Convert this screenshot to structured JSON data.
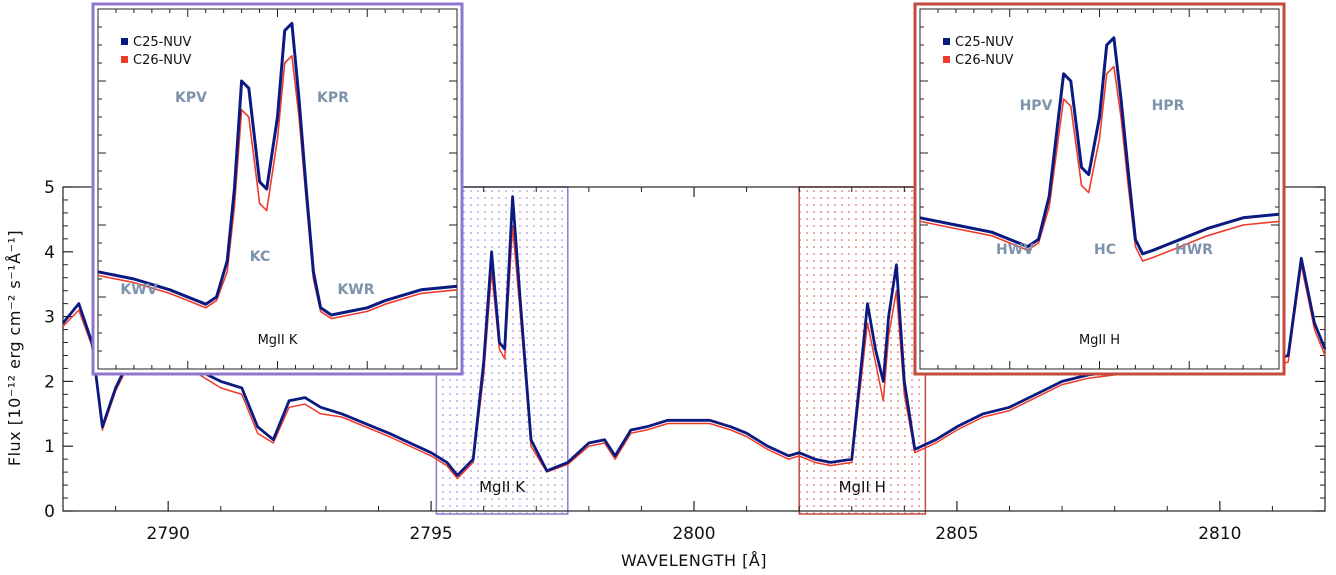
{
  "chart_data": {
    "type": "line",
    "xlabel": "WAVELENGTH [Å]",
    "ylabel": "Flux [10⁻¹² erg cm⁻² s⁻¹Å⁻¹]",
    "xlim": [
      2788,
      2812
    ],
    "ylim": [
      0,
      5
    ],
    "xticks": [
      "2790",
      "2795",
      "2800",
      "2805",
      "2810"
    ],
    "yticks": [
      "0",
      "1",
      "2",
      "3",
      "4",
      "5"
    ],
    "colors": {
      "C25-NUV": "#0b1a80",
      "C26-NUV": "#ef3b2c",
      "k_box": "#8f77cf",
      "h_box": "#c44a3c"
    },
    "shaded_regions": [
      {
        "label": "MgII  K",
        "x_start": 2795.1,
        "x_end": 2797.6,
        "color": "#8f77cf"
      },
      {
        "label": "MgII  H",
        "x_start": 2802.0,
        "x_end": 2804.4,
        "color": "#c44a3c"
      }
    ],
    "series": [
      {
        "name": "C25-NUV",
        "x": [
          2788.0,
          2788.3,
          2788.55,
          2788.75,
          2789.0,
          2789.3,
          2789.6,
          2790.0,
          2790.5,
          2791.0,
          2791.4,
          2791.7,
          2792.0,
          2792.3,
          2792.6,
          2792.9,
          2793.3,
          2793.6,
          2793.9,
          2794.2,
          2794.6,
          2795.0,
          2795.3,
          2795.5,
          2795.8,
          2796.0,
          2796.15,
          2796.3,
          2796.4,
          2796.55,
          2796.7,
          2796.9,
          2797.2,
          2797.6,
          2798.0,
          2798.3,
          2798.5,
          2798.8,
          2799.1,
          2799.5,
          2800.0,
          2800.3,
          2800.7,
          2801.0,
          2801.4,
          2801.8,
          2802.0,
          2802.3,
          2802.6,
          2803.0,
          2803.3,
          2803.45,
          2803.6,
          2803.7,
          2803.85,
          2804.0,
          2804.2,
          2804.6,
          2805.0,
          2805.5,
          2806.0,
          2806.5,
          2807.0,
          2807.5,
          2808.0,
          2808.5,
          2809.0,
          2809.5,
          2810.0,
          2810.5,
          2810.9,
          2811.3,
          2811.55,
          2811.8,
          2812.0
        ],
        "y": [
          2.9,
          3.2,
          2.6,
          1.3,
          1.9,
          2.4,
          2.7,
          2.4,
          2.2,
          2.0,
          1.9,
          1.3,
          1.1,
          1.7,
          1.75,
          1.6,
          1.5,
          1.4,
          1.3,
          1.2,
          1.05,
          0.9,
          0.75,
          0.55,
          0.8,
          2.3,
          4.0,
          2.6,
          2.5,
          4.85,
          3.2,
          1.1,
          0.62,
          0.75,
          1.05,
          1.1,
          0.85,
          1.25,
          1.3,
          1.4,
          1.4,
          1.4,
          1.3,
          1.2,
          1.0,
          0.85,
          0.9,
          0.8,
          0.75,
          0.8,
          3.2,
          2.5,
          2.0,
          3.0,
          3.8,
          2.0,
          0.95,
          1.1,
          1.3,
          1.5,
          1.6,
          1.8,
          2.0,
          2.1,
          2.15,
          2.2,
          2.5,
          2.6,
          2.8,
          3.0,
          2.3,
          2.4,
          3.9,
          2.9,
          2.5
        ]
      },
      {
        "name": "C26-NUV",
        "x": [
          2788.0,
          2788.3,
          2788.55,
          2788.75,
          2789.0,
          2789.3,
          2789.6,
          2790.0,
          2790.5,
          2791.0,
          2791.4,
          2791.7,
          2792.0,
          2792.3,
          2792.6,
          2792.9,
          2793.3,
          2793.6,
          2793.9,
          2794.2,
          2794.6,
          2795.0,
          2795.3,
          2795.5,
          2795.8,
          2796.0,
          2796.15,
          2796.3,
          2796.4,
          2796.55,
          2796.7,
          2796.9,
          2797.2,
          2797.6,
          2798.0,
          2798.3,
          2798.5,
          2798.8,
          2799.1,
          2799.5,
          2800.0,
          2800.3,
          2800.7,
          2801.0,
          2801.4,
          2801.8,
          2802.0,
          2802.3,
          2802.6,
          2803.0,
          2803.3,
          2803.45,
          2803.6,
          2803.7,
          2803.85,
          2804.0,
          2804.2,
          2804.6,
          2805.0,
          2805.5,
          2806.0,
          2806.5,
          2807.0,
          2807.5,
          2808.0,
          2808.5,
          2809.0,
          2809.5,
          2810.0,
          2810.5,
          2810.9,
          2811.3,
          2811.55,
          2811.8,
          2812.0
        ],
        "y": [
          2.85,
          3.1,
          2.55,
          1.25,
          1.85,
          2.35,
          2.65,
          2.35,
          2.15,
          1.9,
          1.8,
          1.2,
          1.05,
          1.6,
          1.65,
          1.5,
          1.45,
          1.35,
          1.25,
          1.15,
          1.0,
          0.85,
          0.7,
          0.5,
          0.75,
          2.1,
          3.7,
          2.5,
          2.35,
          4.4,
          3.0,
          1.0,
          0.6,
          0.72,
          1.0,
          1.05,
          0.8,
          1.2,
          1.25,
          1.35,
          1.35,
          1.35,
          1.25,
          1.15,
          0.95,
          0.8,
          0.85,
          0.75,
          0.7,
          0.75,
          2.9,
          2.3,
          1.7,
          2.7,
          3.4,
          1.8,
          0.9,
          1.05,
          1.25,
          1.45,
          1.55,
          1.75,
          1.95,
          2.05,
          2.1,
          2.15,
          2.45,
          2.55,
          2.75,
          2.95,
          2.2,
          2.3,
          3.8,
          2.8,
          2.4
        ]
      }
    ],
    "insets": [
      {
        "legend": [
          "C25-NUV",
          "C26-NUV"
        ],
        "caption": "MgII  K",
        "labels": [
          "KPV",
          "KPR",
          "KC",
          "KWV",
          "KWR"
        ],
        "series": [
          {
            "name": "C25-NUV",
            "x": [
              0,
              0.1,
              0.2,
              0.3,
              0.33,
              0.36,
              0.38,
              0.4,
              0.42,
              0.45,
              0.47,
              0.5,
              0.52,
              0.54,
              0.56,
              0.58,
              0.6,
              0.62,
              0.65,
              0.7,
              0.75,
              0.8,
              0.9,
              1.0
            ],
            "y": [
              0.27,
              0.25,
              0.22,
              0.18,
              0.2,
              0.3,
              0.5,
              0.8,
              0.78,
              0.52,
              0.5,
              0.7,
              0.94,
              0.96,
              0.75,
              0.5,
              0.27,
              0.17,
              0.15,
              0.16,
              0.17,
              0.19,
              0.22,
              0.23
            ]
          },
          {
            "name": "C26-NUV",
            "x": [
              0,
              0.1,
              0.2,
              0.3,
              0.33,
              0.36,
              0.38,
              0.4,
              0.42,
              0.45,
              0.47,
              0.5,
              0.52,
              0.54,
              0.56,
              0.58,
              0.6,
              0.62,
              0.65,
              0.7,
              0.75,
              0.8,
              0.9,
              1.0
            ],
            "y": [
              0.26,
              0.24,
              0.21,
              0.17,
              0.19,
              0.27,
              0.45,
              0.72,
              0.7,
              0.46,
              0.44,
              0.64,
              0.85,
              0.87,
              0.7,
              0.47,
              0.25,
              0.16,
              0.14,
              0.15,
              0.16,
              0.18,
              0.21,
              0.22
            ]
          }
        ]
      },
      {
        "legend": [
          "C25-NUV",
          "C26-NUV"
        ],
        "caption": "MgII  H",
        "labels": [
          "HPV",
          "HPR",
          "HC",
          "HWV",
          "HWR"
        ],
        "series": [
          {
            "name": "C25-NUV",
            "x": [
              0,
              0.1,
              0.2,
              0.3,
              0.33,
              0.36,
              0.38,
              0.4,
              0.42,
              0.45,
              0.47,
              0.5,
              0.52,
              0.54,
              0.56,
              0.58,
              0.6,
              0.62,
              0.65,
              0.7,
              0.75,
              0.8,
              0.9,
              1.0
            ],
            "y": [
              0.42,
              0.4,
              0.38,
              0.34,
              0.36,
              0.48,
              0.65,
              0.82,
              0.8,
              0.56,
              0.54,
              0.7,
              0.9,
              0.92,
              0.75,
              0.55,
              0.36,
              0.32,
              0.33,
              0.35,
              0.37,
              0.39,
              0.42,
              0.43
            ]
          },
          {
            "name": "C26-NUV",
            "x": [
              0,
              0.1,
              0.2,
              0.3,
              0.33,
              0.36,
              0.38,
              0.4,
              0.42,
              0.45,
              0.47,
              0.5,
              0.52,
              0.54,
              0.56,
              0.58,
              0.6,
              0.62,
              0.65,
              0.7,
              0.75,
              0.8,
              0.9,
              1.0
            ],
            "y": [
              0.41,
              0.39,
              0.37,
              0.33,
              0.35,
              0.45,
              0.6,
              0.75,
              0.73,
              0.51,
              0.49,
              0.64,
              0.82,
              0.84,
              0.7,
              0.51,
              0.34,
              0.3,
              0.31,
              0.33,
              0.35,
              0.37,
              0.4,
              0.41
            ]
          }
        ]
      }
    ]
  }
}
